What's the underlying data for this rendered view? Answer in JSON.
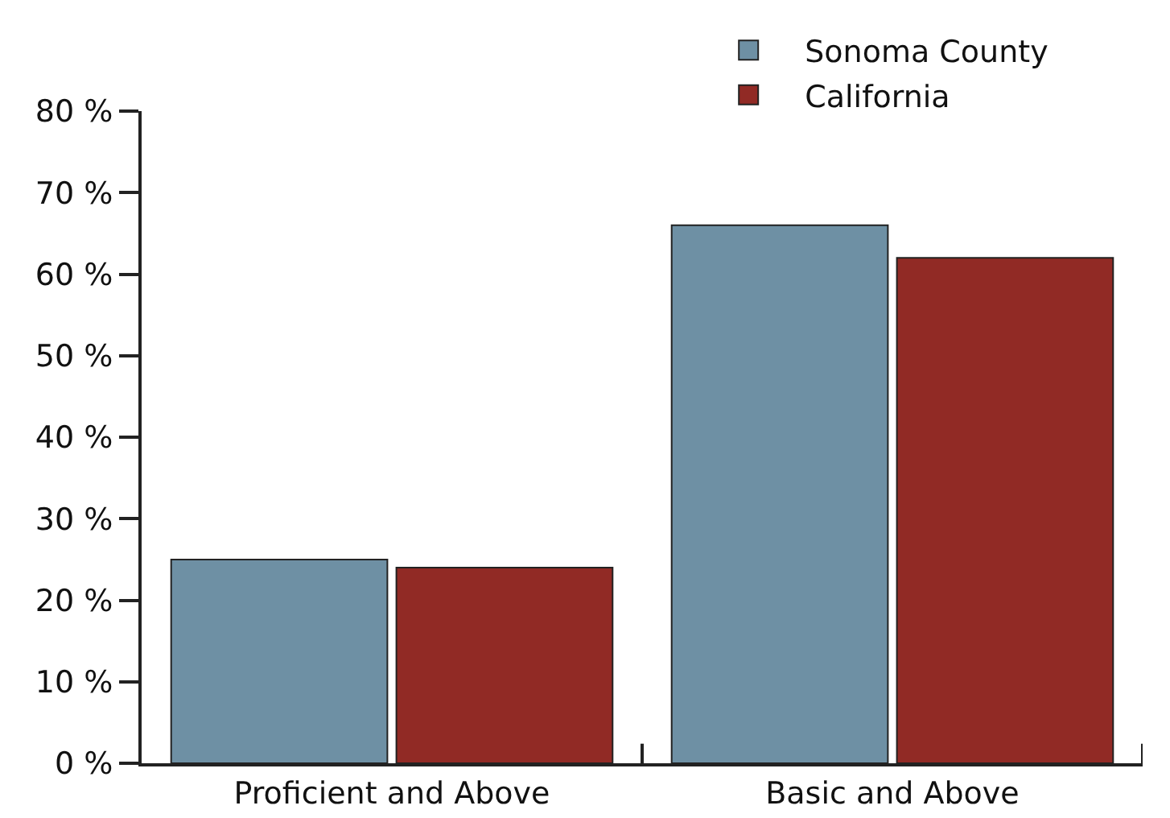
{
  "chart_data": {
    "type": "bar",
    "categories": [
      "Proficient and Above",
      "Basic and Above"
    ],
    "series": [
      {
        "name": "Sonoma County",
        "color": "#6e90a4",
        "values": [
          25,
          66
        ]
      },
      {
        "name": "California",
        "color": "#912a25",
        "values": [
          24,
          62
        ]
      }
    ],
    "ylim": [
      0,
      80
    ],
    "yticks": [
      {
        "value": 0,
        "label": "0 %"
      },
      {
        "value": 10,
        "label": "10 %"
      },
      {
        "value": 20,
        "label": "20 %"
      },
      {
        "value": 30,
        "label": "30 %"
      },
      {
        "value": 40,
        "label": "40 %"
      },
      {
        "value": 50,
        "label": "50 %"
      },
      {
        "value": 60,
        "label": "60 %"
      },
      {
        "value": 70,
        "label": "70 %"
      },
      {
        "value": 80,
        "label": "80 %"
      }
    ],
    "grid": false,
    "legend": "top right"
  }
}
